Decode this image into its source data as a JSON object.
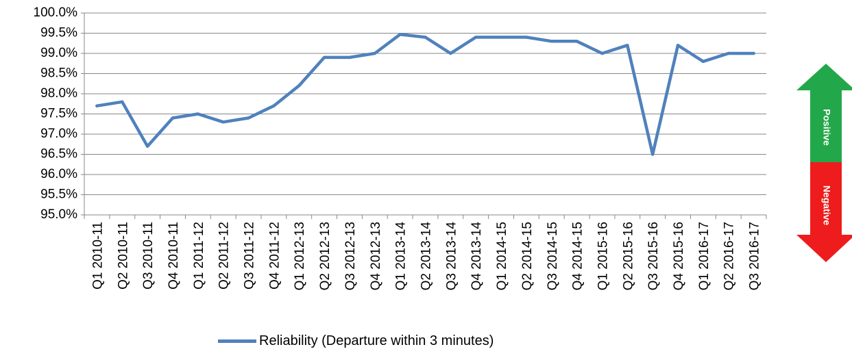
{
  "chart_data": {
    "type": "line",
    "categories": [
      "Q1 2010-11",
      "Q2 2010-11",
      "Q3 2010-11",
      "Q4 2010-11",
      "Q1 2011-12",
      "Q2 2011-12",
      "Q3 2011-12",
      "Q4 2011-12",
      "Q1 2012-13",
      "Q2 2012-13",
      "Q3 2012-13",
      "Q4 2012-13",
      "Q1 2013-14",
      "Q2 2013-14",
      "Q3 2013-14",
      "Q4 2013-14",
      "Q1 2014-15",
      "Q2 2014-15",
      "Q3 2014-15",
      "Q4 2014-15",
      "Q1 2015-16",
      "Q2 2015-16",
      "Q3 2015-16",
      "Q4 2015-16",
      "Q1 2016-17",
      "Q2 2016-17",
      "Q3 2016-17"
    ],
    "series": [
      {
        "name": "Reliability (Departure within 3 minutes)",
        "color": "#4f81bd",
        "values": [
          97.7,
          97.8,
          96.7,
          97.4,
          97.5,
          97.3,
          97.4,
          97.7,
          98.2,
          98.9,
          98.9,
          99.0,
          99.47,
          99.4,
          99.0,
          99.4,
          99.4,
          99.4,
          99.3,
          99.3,
          99.0,
          99.2,
          96.5,
          99.2,
          98.8,
          99.0,
          99.0
        ]
      }
    ],
    "yticks": [
      "95.0%",
      "95.5%",
      "96.0%",
      "96.5%",
      "97.0%",
      "97.5%",
      "98.0%",
      "98.5%",
      "99.0%",
      "99.5%",
      "100.0%"
    ],
    "ylim": [
      95.0,
      100.0
    ],
    "grid": true,
    "legend_position": "bottom",
    "indicator": {
      "positive_label": "Positive",
      "negative_label": "Negative",
      "positive_color": "#22a84a",
      "negative_color": "#ee1c1c"
    }
  }
}
